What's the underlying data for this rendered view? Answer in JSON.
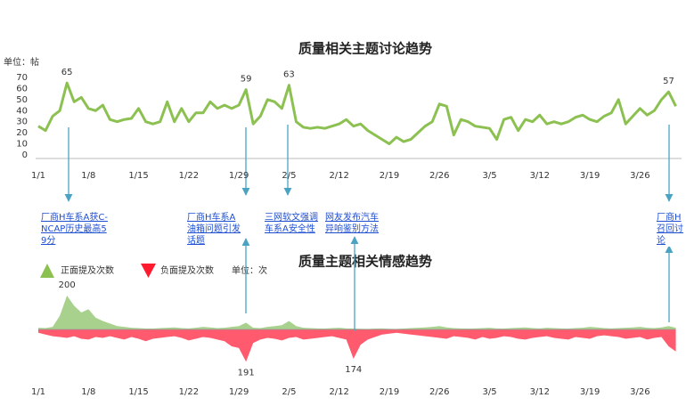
{
  "chart_data": [
    {
      "type": "line",
      "title": "质量相关主题讨论趋势",
      "unit": "单位：帖",
      "categories": [
        "1/1",
        null,
        null,
        null,
        null,
        null,
        null,
        "1/8",
        null,
        null,
        null,
        null,
        null,
        null,
        "1/15",
        null,
        null,
        null,
        null,
        null,
        null,
        "1/22",
        null,
        null,
        null,
        null,
        null,
        null,
        "1/29",
        null,
        null,
        null,
        null,
        null,
        null,
        "2/5",
        null,
        null,
        null,
        null,
        null,
        null,
        "2/12",
        null,
        null,
        null,
        null,
        null,
        null,
        "2/19",
        null,
        null,
        null,
        null,
        null,
        null,
        "2/26",
        null,
        null,
        null,
        null,
        null,
        null,
        "3/5",
        null,
        null,
        null,
        null,
        null,
        null,
        "3/12",
        null,
        null,
        null,
        null,
        null,
        null,
        "3/19",
        null,
        null,
        null,
        null,
        null,
        null,
        "3/26",
        null,
        null,
        null,
        null,
        null
      ],
      "series": [
        {
          "color": "#8cc152",
          "values": [
            26,
            22,
            35,
            40,
            65,
            48,
            52,
            42,
            40,
            45,
            32,
            30,
            32,
            33,
            42,
            30,
            28,
            30,
            48,
            30,
            42,
            30,
            38,
            38,
            48,
            42,
            45,
            42,
            45,
            59,
            28,
            35,
            50,
            48,
            42,
            63,
            30,
            25,
            24,
            25,
            24,
            26,
            28,
            32,
            26,
            28,
            22,
            18,
            14,
            10,
            16,
            12,
            14,
            20,
            26,
            30,
            46,
            44,
            18,
            32,
            30,
            26,
            25,
            24,
            14,
            32,
            34,
            22,
            32,
            30,
            36,
            28,
            30,
            28,
            30,
            34,
            36,
            32,
            30,
            35,
            38,
            50,
            28,
            35,
            42,
            36,
            40,
            50,
            57,
            44
          ],
          "value_labels": [
            null,
            null,
            null,
            null,
            "65",
            null,
            null,
            null,
            null,
            null,
            null,
            null,
            null,
            null,
            null,
            null,
            null,
            null,
            null,
            null,
            null,
            null,
            null,
            null,
            null,
            null,
            null,
            null,
            null,
            "59",
            null,
            null,
            null,
            null,
            null,
            "63",
            null,
            null,
            null,
            null,
            null,
            null,
            null,
            null,
            null,
            null,
            null,
            null,
            null,
            null,
            null,
            null,
            null,
            null,
            null,
            null,
            null,
            null,
            null,
            null,
            null,
            null,
            null,
            null,
            null,
            null,
            null,
            null,
            null,
            null,
            null,
            null,
            null,
            null,
            null,
            null,
            null,
            null,
            null,
            null,
            null,
            null,
            null,
            null,
            null,
            null,
            null,
            null,
            "57",
            null
          ]
        }
      ],
      "ylim": [
        0,
        70
      ],
      "yticks": [
        0,
        10,
        20,
        30,
        40,
        50,
        60,
        70
      ],
      "annotations": [
        "厂商H车系A获C-NCAP历史最高59分",
        "厂商H车系A油箱问题引发话题",
        "三网软文强调车系A安全性",
        "网友发布汽车异响鉴别方法",
        "厂商H召回讨论"
      ]
    },
    {
      "type": "area",
      "title": "质量主题相关情感趋势",
      "unit": "单位：次",
      "categories": [
        "1/1",
        null,
        null,
        null,
        null,
        null,
        null,
        "1/8",
        null,
        null,
        null,
        null,
        null,
        null,
        "1/15",
        null,
        null,
        null,
        null,
        null,
        null,
        "1/22",
        null,
        null,
        null,
        null,
        null,
        null,
        "1/29",
        null,
        null,
        null,
        null,
        null,
        null,
        "2/5",
        null,
        null,
        null,
        null,
        null,
        null,
        "2/12",
        null,
        null,
        null,
        null,
        null,
        null,
        "2/19",
        null,
        null,
        null,
        null,
        null,
        null,
        "2/26",
        null,
        null,
        null,
        null,
        null,
        null,
        "3/5",
        null,
        null,
        null,
        null,
        null,
        null,
        "3/12",
        null,
        null,
        null,
        null,
        null,
        null,
        "3/19",
        null,
        null,
        null,
        null,
        null,
        null,
        "3/26",
        null,
        null,
        null,
        null,
        null
      ],
      "ylim": [
        -250,
        250
      ],
      "series": [
        {
          "name": "正面提及次数",
          "color": "#a9d18e",
          "values": [
            10,
            8,
            15,
            80,
            200,
            140,
            100,
            120,
            70,
            50,
            35,
            20,
            15,
            10,
            8,
            5,
            5,
            8,
            10,
            12,
            8,
            6,
            10,
            15,
            12,
            8,
            10,
            15,
            20,
            40,
            10,
            8,
            15,
            20,
            25,
            50,
            20,
            10,
            8,
            6,
            5,
            8,
            10,
            6,
            5,
            4,
            3,
            5,
            6,
            4,
            3,
            5,
            8,
            10,
            12,
            15,
            20,
            12,
            8,
            6,
            5,
            6,
            8,
            10,
            6,
            5,
            8,
            10,
            12,
            8,
            6,
            10,
            8,
            6,
            5,
            8,
            10,
            15,
            12,
            8,
            6,
            8,
            10,
            12,
            15,
            10,
            8,
            12,
            20,
            10
          ],
          "value_labels": [
            null,
            null,
            null,
            null,
            "200",
            null,
            null,
            null,
            null,
            null,
            null,
            null,
            null,
            null,
            null,
            null,
            null,
            null,
            null,
            null,
            null,
            null,
            null,
            null,
            null,
            null,
            null,
            null,
            null,
            null,
            null,
            null,
            null,
            null,
            null,
            null,
            null,
            null,
            null,
            null,
            null,
            null,
            null,
            null,
            null,
            null,
            null,
            null,
            null,
            null,
            null,
            null,
            null,
            null,
            null,
            null,
            null,
            null,
            null,
            null,
            null,
            null,
            null,
            null,
            null,
            null,
            null,
            null,
            null,
            null,
            null,
            null,
            null,
            null,
            null,
            null,
            null,
            null,
            null,
            null,
            null,
            null,
            null,
            null,
            null,
            null,
            null,
            null,
            null,
            null
          ]
        },
        {
          "name": "负面提及次数",
          "color": "#ff5a6e",
          "values": [
            -20,
            -30,
            -40,
            -45,
            -50,
            -40,
            -55,
            -60,
            -45,
            -50,
            -40,
            -50,
            -60,
            -45,
            -55,
            -70,
            -55,
            -50,
            -45,
            -40,
            -50,
            -65,
            -55,
            -45,
            -50,
            -60,
            -70,
            -100,
            -110,
            -191,
            -80,
            -60,
            -50,
            -55,
            -65,
            -50,
            -45,
            -60,
            -55,
            -50,
            -45,
            -40,
            -50,
            -60,
            -174,
            -90,
            -60,
            -45,
            -30,
            -25,
            -20,
            -25,
            -30,
            -35,
            -40,
            -45,
            -50,
            -55,
            -40,
            -45,
            -50,
            -60,
            -45,
            -55,
            -50,
            -40,
            -45,
            -55,
            -60,
            -50,
            -45,
            -40,
            -50,
            -55,
            -60,
            -45,
            -50,
            -55,
            -40,
            -35,
            -40,
            -45,
            -55,
            -50,
            -45,
            -60,
            -50,
            -45,
            -100,
            -130
          ],
          "value_labels": [
            null,
            null,
            null,
            null,
            null,
            null,
            null,
            null,
            null,
            null,
            null,
            null,
            null,
            null,
            null,
            null,
            null,
            null,
            null,
            null,
            null,
            null,
            null,
            null,
            null,
            null,
            null,
            null,
            null,
            "191",
            null,
            null,
            null,
            null,
            null,
            null,
            null,
            null,
            null,
            null,
            null,
            null,
            null,
            null,
            "174",
            null,
            null,
            null,
            null,
            null,
            null,
            null,
            null,
            null,
            null,
            null,
            null,
            null,
            null,
            null,
            null,
            null,
            null,
            null,
            null,
            null,
            null,
            null,
            null,
            null,
            null,
            null,
            null,
            null,
            null,
            null,
            null,
            null,
            null,
            null,
            null,
            null,
            null,
            null,
            null,
            null,
            null,
            null,
            null,
            null
          ]
        }
      ]
    }
  ]
}
